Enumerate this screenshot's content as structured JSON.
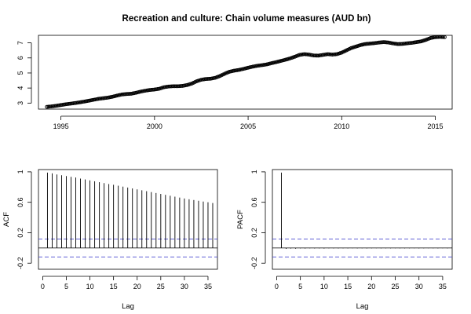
{
  "chart_data": [
    {
      "type": "line",
      "title": "Recreation and culture: Chain volume measures (AUD bn)",
      "xlabel": "",
      "ylabel": "",
      "xlim": [
        1993.8,
        2015.9
      ],
      "ylim": [
        2.6,
        7.5
      ],
      "xticks": [
        1995,
        2000,
        2005,
        2010,
        2015
      ],
      "yticks": [
        3,
        4,
        5,
        6,
        7
      ],
      "grid": false,
      "point_style": "open-circle",
      "series": [
        {
          "x": [
            1994.25,
            1994.5,
            1994.75,
            1995.0,
            1995.25,
            1995.5,
            1995.75,
            1996.0,
            1996.25,
            1996.5,
            1996.75,
            1997.0,
            1997.25,
            1997.5,
            1997.75,
            1998.0,
            1998.25,
            1998.5,
            1998.75,
            1999.0,
            1999.25,
            1999.5,
            1999.75,
            2000.0,
            2000.25,
            2000.5,
            2000.75,
            2001.0,
            2001.25,
            2001.5,
            2001.75,
            2002.0,
            2002.25,
            2002.5,
            2002.75,
            2003.0,
            2003.25,
            2003.5,
            2003.75,
            2004.0,
            2004.25,
            2004.5,
            2004.75,
            2005.0,
            2005.25,
            2005.5,
            2005.75,
            2006.0,
            2006.25,
            2006.5,
            2006.75,
            2007.0,
            2007.25,
            2007.5,
            2007.75,
            2008.0,
            2008.25,
            2008.5,
            2008.75,
            2009.0,
            2009.25,
            2009.5,
            2009.75,
            2010.0,
            2010.25,
            2010.5,
            2010.75,
            2011.0,
            2011.25,
            2011.5,
            2011.75,
            2012.0,
            2012.25,
            2012.5,
            2012.75,
            2013.0,
            2013.25,
            2013.5,
            2013.75,
            2014.0,
            2014.25,
            2014.5,
            2014.75,
            2015.0,
            2015.25,
            2015.5
          ],
          "y": [
            2.75,
            2.78,
            2.82,
            2.87,
            2.92,
            2.96,
            3.0,
            3.05,
            3.1,
            3.16,
            3.22,
            3.28,
            3.32,
            3.36,
            3.42,
            3.5,
            3.57,
            3.6,
            3.62,
            3.68,
            3.76,
            3.82,
            3.87,
            3.9,
            3.95,
            4.05,
            4.1,
            4.12,
            4.12,
            4.14,
            4.2,
            4.3,
            4.45,
            4.55,
            4.6,
            4.62,
            4.68,
            4.8,
            4.95,
            5.08,
            5.15,
            5.2,
            5.27,
            5.35,
            5.42,
            5.48,
            5.52,
            5.57,
            5.65,
            5.72,
            5.8,
            5.88,
            5.97,
            6.08,
            6.2,
            6.25,
            6.22,
            6.16,
            6.15,
            6.2,
            6.25,
            6.22,
            6.25,
            6.35,
            6.5,
            6.65,
            6.75,
            6.85,
            6.92,
            6.95,
            6.98,
            7.02,
            7.05,
            7.02,
            6.96,
            6.92,
            6.93,
            6.97,
            7.0,
            7.05,
            7.1,
            7.2,
            7.32,
            7.38,
            7.4,
            7.38
          ]
        }
      ]
    },
    {
      "type": "bar",
      "title": "",
      "xlabel": "Lag",
      "ylabel": "ACF",
      "xlim": [
        -0.9,
        37
      ],
      "ylim": [
        -0.28,
        1.03
      ],
      "xticks": [
        0,
        5,
        10,
        15,
        20,
        25,
        30,
        35
      ],
      "yticks": [
        -0.2,
        0.2,
        0.6,
        1.0
      ],
      "conf_band": [
        0.118,
        -0.118
      ],
      "series": [
        {
          "x": [
            1,
            2,
            3,
            4,
            5,
            6,
            7,
            8,
            9,
            10,
            11,
            12,
            13,
            14,
            15,
            16,
            17,
            18,
            19,
            20,
            21,
            22,
            23,
            24,
            25,
            26,
            27,
            28,
            29,
            30,
            31,
            32,
            33,
            34,
            35,
            36
          ],
          "values": [
            0.99,
            0.98,
            0.965,
            0.955,
            0.945,
            0.935,
            0.925,
            0.912,
            0.9,
            0.888,
            0.876,
            0.864,
            0.852,
            0.84,
            0.83,
            0.818,
            0.806,
            0.794,
            0.782,
            0.77,
            0.758,
            0.746,
            0.734,
            0.722,
            0.71,
            0.698,
            0.686,
            0.674,
            0.662,
            0.65,
            0.64,
            0.63,
            0.62,
            0.61,
            0.6,
            0.59
          ]
        }
      ]
    },
    {
      "type": "bar",
      "title": "",
      "xlabel": "Lag",
      "ylabel": "PACF",
      "xlim": [
        -0.9,
        37
      ],
      "ylim": [
        -0.28,
        1.03
      ],
      "xticks": [
        0,
        5,
        10,
        15,
        20,
        25,
        30,
        35
      ],
      "yticks": [
        -0.2,
        0.2,
        0.6,
        1.0
      ],
      "conf_band": [
        0.118,
        -0.118
      ],
      "series": [
        {
          "x": [
            1,
            2,
            3,
            4,
            5,
            6,
            7,
            8,
            9,
            10,
            11,
            12,
            13,
            14,
            15,
            16,
            17,
            18,
            19,
            20,
            21,
            22,
            23,
            24,
            25,
            26,
            27,
            28,
            29,
            30,
            31,
            32,
            33,
            34,
            35,
            36
          ],
          "values": [
            0.99,
            -0.012,
            -0.008,
            -0.01,
            -0.006,
            -0.008,
            -0.005,
            -0.007,
            -0.006,
            -0.008,
            -0.005,
            -0.006,
            -0.007,
            -0.005,
            -0.006,
            -0.004,
            -0.006,
            -0.005,
            -0.007,
            -0.005,
            -0.004,
            -0.006,
            -0.005,
            -0.006,
            -0.004,
            -0.005,
            -0.006,
            -0.005,
            -0.004,
            -0.006,
            -0.005,
            -0.004,
            -0.005,
            -0.006,
            -0.004,
            -0.005
          ]
        }
      ]
    }
  ],
  "colors": {
    "line": "#000000",
    "bars": "#000000",
    "conf_band": "#4a4ad0",
    "axis": "#000000"
  }
}
